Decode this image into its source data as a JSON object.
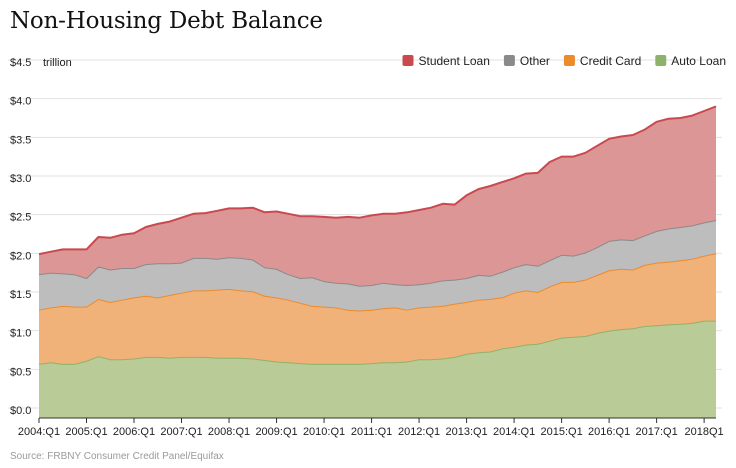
{
  "title": "Non-Housing Debt Balance",
  "source": "Source: FRBNY Consumer Credit Panel/Equifax",
  "chart_data": {
    "type": "area",
    "stacked": true,
    "title": "Non-Housing Debt Balance",
    "unit_label": "trillion",
    "ylim": [
      0,
      4.5
    ],
    "y_ticks": [
      {
        "value": 0.0,
        "label": "$0.0"
      },
      {
        "value": 0.5,
        "label": "$0.5"
      },
      {
        "value": 1.0,
        "label": "$1.0"
      },
      {
        "value": 1.5,
        "label": "$1.5"
      },
      {
        "value": 2.0,
        "label": "$2.0"
      },
      {
        "value": 2.5,
        "label": "$2.5"
      },
      {
        "value": 3.0,
        "label": "$3.0"
      },
      {
        "value": 3.5,
        "label": "$3.5"
      },
      {
        "value": 4.0,
        "label": "$4.0"
      },
      {
        "value": 4.5,
        "label": "$4.5"
      }
    ],
    "x_ticks": [
      "2004:Q1",
      "2005:Q1",
      "2006:Q1",
      "2007:Q1",
      "2008:Q1",
      "2009:Q1",
      "2010:Q1",
      "2011:Q1",
      "2012:Q1",
      "2013:Q1",
      "2014:Q1",
      "2015:Q1",
      "2016:Q1",
      "2017:Q1",
      "2018Q1"
    ],
    "x_range": [
      "2004:Q1",
      "2018:Q4"
    ],
    "grid": "horizontal",
    "legend_position": "top-right",
    "series": [
      {
        "name": "Auto Loan",
        "color": "#8fb26a",
        "fill": "#b9cb96",
        "values": [
          0.7,
          0.72,
          0.7,
          0.7,
          0.74,
          0.8,
          0.76,
          0.76,
          0.77,
          0.79,
          0.79,
          0.78,
          0.79,
          0.79,
          0.79,
          0.78,
          0.78,
          0.78,
          0.77,
          0.75,
          0.73,
          0.72,
          0.71,
          0.7,
          0.7,
          0.7,
          0.7,
          0.7,
          0.71,
          0.72,
          0.72,
          0.73,
          0.76,
          0.76,
          0.77,
          0.79,
          0.83,
          0.85,
          0.86,
          0.9,
          0.92,
          0.95,
          0.96,
          1.0,
          1.04,
          1.05,
          1.06,
          1.1,
          1.13,
          1.15,
          1.16,
          1.19,
          1.2,
          1.21,
          1.22,
          1.23,
          1.26,
          1.26
        ]
      },
      {
        "name": "Credit Card",
        "color": "#ee8a2a",
        "fill": "#f1b27a",
        "values": [
          0.7,
          0.71,
          0.75,
          0.74,
          0.7,
          0.74,
          0.74,
          0.77,
          0.79,
          0.79,
          0.77,
          0.81,
          0.83,
          0.86,
          0.86,
          0.88,
          0.89,
          0.87,
          0.87,
          0.83,
          0.83,
          0.81,
          0.78,
          0.75,
          0.74,
          0.73,
          0.7,
          0.69,
          0.69,
          0.7,
          0.71,
          0.67,
          0.67,
          0.68,
          0.68,
          0.69,
          0.67,
          0.68,
          0.68,
          0.66,
          0.7,
          0.7,
          0.67,
          0.7,
          0.72,
          0.71,
          0.73,
          0.75,
          0.78,
          0.78,
          0.76,
          0.79,
          0.81,
          0.81,
          0.82,
          0.83,
          0.84,
          0.87
        ]
      },
      {
        "name": "Other",
        "color": "#8a8a8a",
        "fill": "#bdbdbd",
        "values": [
          0.46,
          0.45,
          0.42,
          0.42,
          0.37,
          0.42,
          0.42,
          0.41,
          0.38,
          0.41,
          0.44,
          0.41,
          0.39,
          0.42,
          0.42,
          0.4,
          0.41,
          0.42,
          0.41,
          0.37,
          0.37,
          0.33,
          0.32,
          0.37,
          0.33,
          0.32,
          0.34,
          0.32,
          0.32,
          0.33,
          0.3,
          0.32,
          0.3,
          0.31,
          0.33,
          0.31,
          0.31,
          0.32,
          0.3,
          0.33,
          0.33,
          0.34,
          0.34,
          0.34,
          0.35,
          0.34,
          0.35,
          0.36,
          0.38,
          0.38,
          0.38,
          0.38,
          0.41,
          0.43,
          0.43,
          0.43,
          0.43,
          0.43
        ]
      },
      {
        "name": "Student Loan",
        "color": "#c9494f",
        "fill": "#dc9696",
        "values": [
          0.26,
          0.27,
          0.31,
          0.32,
          0.37,
          0.38,
          0.41,
          0.43,
          0.45,
          0.48,
          0.51,
          0.54,
          0.58,
          0.57,
          0.58,
          0.62,
          0.63,
          0.64,
          0.67,
          0.71,
          0.74,
          0.78,
          0.8,
          0.79,
          0.83,
          0.84,
          0.86,
          0.88,
          0.9,
          0.89,
          0.91,
          0.94,
          0.96,
          0.97,
          0.99,
          0.97,
          1.07,
          1.11,
          1.16,
          1.16,
          1.15,
          1.17,
          1.2,
          1.27,
          1.27,
          1.28,
          1.29,
          1.31,
          1.32,
          1.33,
          1.36,
          1.37,
          1.41,
          1.42,
          1.41,
          1.42,
          1.44,
          1.47
        ]
      }
    ]
  }
}
